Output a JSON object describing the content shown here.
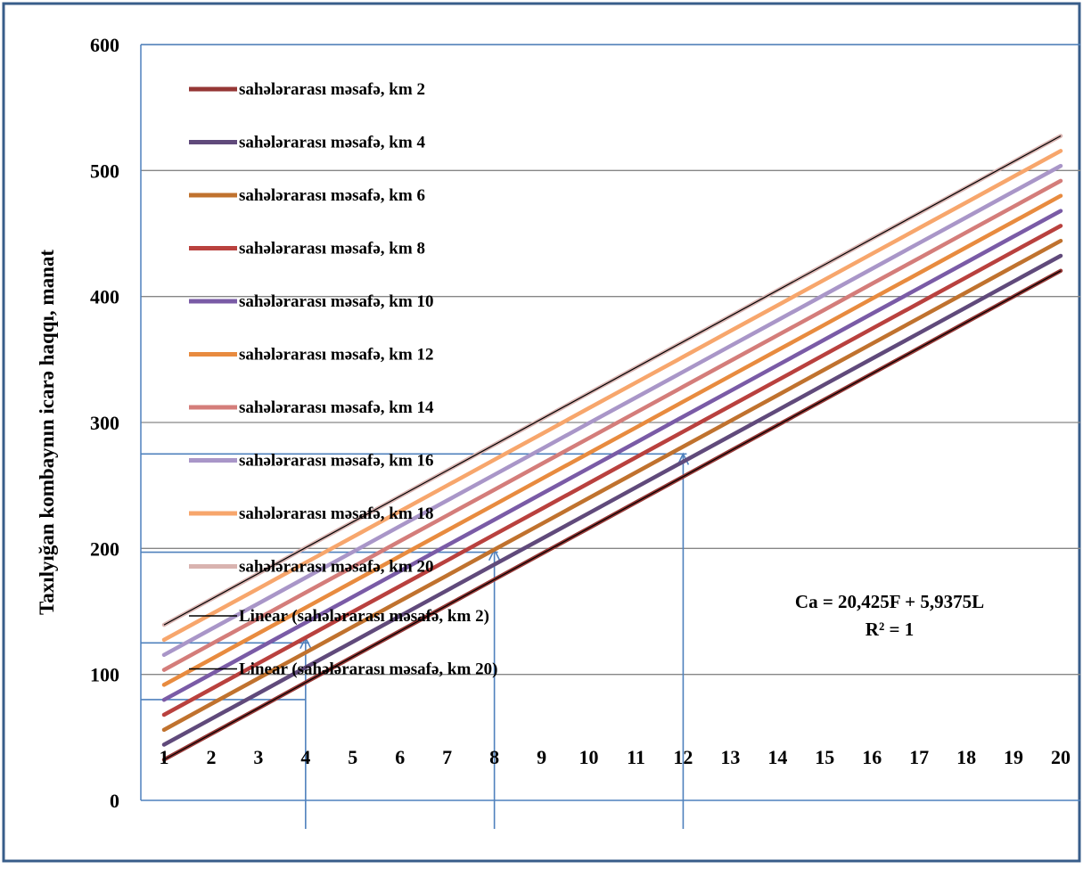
{
  "chart_data": {
    "type": "line",
    "title": "",
    "xlabel": "",
    "ylabel": "Taxılyığan kombaynın icarə haqqı, manat",
    "x": [
      1,
      2,
      3,
      4,
      5,
      6,
      7,
      8,
      9,
      10,
      11,
      12,
      13,
      14,
      15,
      16,
      17,
      18,
      19,
      20
    ],
    "xticks": [
      "1",
      "2",
      "3",
      "4",
      "5",
      "6",
      "7",
      "8",
      "9",
      "10",
      "11",
      "12",
      "13",
      "14",
      "15",
      "16",
      "17",
      "18",
      "19",
      "20"
    ],
    "ylim": [
      0,
      600
    ],
    "yticks": [
      "0",
      "100",
      "200",
      "300",
      "400",
      "500",
      "600"
    ],
    "grid": "horizontal",
    "legend_position": "left",
    "series": [
      {
        "name": "sahələrarası məsafə, km  2",
        "color": "#953735",
        "values": [
          32.3,
          52.7,
          73.1,
          93.6,
          114.0,
          134.4,
          154.9,
          175.3,
          195.7,
          216.1,
          236.6,
          257.0,
          277.4,
          297.8,
          318.3,
          338.7,
          359.1,
          379.6,
          400.0,
          420.4
        ]
      },
      {
        "name": "sahələrarası məsafə, km  4",
        "color": "#604A7B",
        "values": [
          44.2,
          64.6,
          85.0,
          105.5,
          125.9,
          146.3,
          166.8,
          187.2,
          207.6,
          228.0,
          248.5,
          268.9,
          289.3,
          309.7,
          330.2,
          350.6,
          371.0,
          391.4,
          411.9,
          432.3
        ]
      },
      {
        "name": "sahələrarası məsafə, km  6",
        "color": "#C0722E",
        "values": [
          56.0,
          76.5,
          96.9,
          117.3,
          137.8,
          158.2,
          178.6,
          199.1,
          219.5,
          239.9,
          260.4,
          280.8,
          301.2,
          321.6,
          342.1,
          362.5,
          382.9,
          403.3,
          423.8,
          444.2
        ]
      },
      {
        "name": "sahələrarası məsafə, km  8",
        "color": "#B9413E",
        "values": [
          67.9,
          88.4,
          108.8,
          129.2,
          149.7,
          170.1,
          190.5,
          211.0,
          231.4,
          251.8,
          272.3,
          292.7,
          313.1,
          333.5,
          354.0,
          374.4,
          394.8,
          415.2,
          435.7,
          456.1
        ]
      },
      {
        "name": "sahələrarası məsafə, km  10",
        "color": "#7A5BA6",
        "values": [
          79.8,
          100.2,
          120.7,
          141.1,
          161.5,
          182.0,
          202.4,
          222.8,
          243.3,
          263.7,
          284.1,
          304.6,
          325.0,
          345.4,
          365.9,
          386.3,
          406.7,
          427.1,
          447.6,
          468.0
        ]
      },
      {
        "name": "sahələrarası məsafə, km  12",
        "color": "#E88B3F",
        "values": [
          91.7,
          112.1,
          132.6,
          153.0,
          173.4,
          193.9,
          214.3,
          234.7,
          255.2,
          275.6,
          296.0,
          316.5,
          336.9,
          357.3,
          377.7,
          398.2,
          418.6,
          439.0,
          459.5,
          479.9
        ]
      },
      {
        "name": "sahələrarası məsafə, km  14",
        "color": "#D47D7A",
        "values": [
          103.6,
          124.0,
          144.5,
          164.9,
          185.3,
          205.8,
          226.2,
          246.6,
          267.1,
          287.5,
          307.9,
          328.4,
          348.8,
          369.2,
          389.6,
          410.1,
          430.5,
          450.9,
          471.4,
          491.8
        ]
      },
      {
        "name": "sahələrarası məsafə, km  16",
        "color": "#A996C8",
        "values": [
          115.5,
          135.9,
          156.3,
          176.8,
          197.2,
          217.7,
          238.1,
          258.5,
          278.9,
          299.4,
          319.8,
          340.2,
          360.7,
          381.1,
          401.5,
          422.0,
          442.4,
          462.8,
          483.3,
          503.7
        ]
      },
      {
        "name": "sahələrarası məsafə, km  18",
        "color": "#F7A66C",
        "values": [
          127.4,
          147.8,
          168.2,
          188.7,
          209.1,
          229.5,
          250.0,
          270.4,
          290.8,
          311.3,
          331.7,
          352.1,
          372.6,
          393.0,
          413.4,
          433.9,
          454.3,
          474.7,
          495.2,
          515.6
        ]
      },
      {
        "name": "sahələrarası məsafə, km  20",
        "color": "#D9B3B0",
        "values": [
          139.3,
          159.7,
          180.1,
          200.6,
          221.0,
          241.4,
          261.9,
          282.3,
          302.7,
          323.2,
          343.6,
          364.0,
          384.5,
          404.9,
          425.3,
          445.8,
          466.2,
          486.6,
          507.1,
          527.5
        ]
      }
    ],
    "trendlines": [
      {
        "name": "Linear (sahələrarası məsafə, km  2)",
        "color": "#000000",
        "values": [
          32.3,
          420.4
        ]
      },
      {
        "name": "Linear (sahələrarası məsafə, km  20)",
        "color": "#000000",
        "values": [
          139.3,
          527.5
        ]
      }
    ],
    "annotation": {
      "equation": "Ca = 20,425F + 5,9375L",
      "r2": "R² = 1"
    },
    "guide_lines": [
      {
        "x": 4,
        "y_from": 0,
        "y_to": 129,
        "h_from_x": 0,
        "h_y": 125
      },
      {
        "x": 4,
        "h_from_x": 0,
        "h_y": 80
      },
      {
        "x": 8,
        "y_from": 0,
        "y_to": 199,
        "h_from_x": 0,
        "h_y": 197
      },
      {
        "x": 12,
        "y_from": 0,
        "y_to": 275,
        "h_from_x": 0,
        "h_y": 275
      }
    ],
    "colors": {
      "frame": "#385D8A",
      "axis": "#4F81BD",
      "grid": "#868686",
      "arrows": "#4F81BD"
    }
  }
}
